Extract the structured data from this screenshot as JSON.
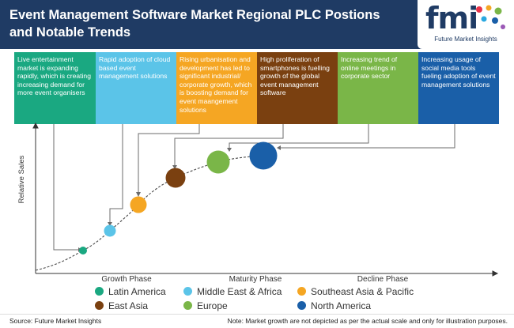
{
  "header": {
    "title": "Event Management Software Market Regional PLC Postions and Notable Trends"
  },
  "logo": {
    "wordmark": "fmi",
    "tagline": "Future Market Insights",
    "dot_colors": [
      "#e8334a",
      "#f5a623",
      "#7ab648",
      "#29a8e0",
      "#1a5fa8",
      "#9b59b6"
    ]
  },
  "trends": [
    {
      "text": "Live entertainment market is expanding rapidly, which is creating increasing demand for more event organisers",
      "color": "#1aa881"
    },
    {
      "text": "Rapid adoption of cloud based event management solutions",
      "color": "#5bc4e8"
    },
    {
      "text": "Rising urbanisation and development has led to significant industrial/ corporate growth, which is boosting demand for event maangement solutions",
      "color": "#f5a623"
    },
    {
      "text": "High proliferation of smartphones is fuelling growth of the global event management software",
      "color": "#7a4010"
    },
    {
      "text": "Increasing trend of online meetings in corporate sector",
      "color": "#7ab648"
    },
    {
      "text": "Increasing usage of social media tools fueling adoption of event management solutions",
      "color": "#1a5fa8"
    }
  ],
  "axis": {
    "ylabel": "Relative Sales"
  },
  "phases": [
    "Growth Phase",
    "Maturity Phase",
    "Decline Phase"
  ],
  "regions": [
    {
      "name": "Latin America",
      "color": "#1aa881"
    },
    {
      "name": "Middle East & Africa",
      "color": "#5bc4e8"
    },
    {
      "name": "Southeast Asia & Pacific",
      "color": "#f5a623"
    },
    {
      "name": "East Asia",
      "color": "#7a4010"
    },
    {
      "name": "Europe",
      "color": "#7ab648"
    },
    {
      "name": "North America",
      "color": "#1a5fa8"
    }
  ],
  "footer": {
    "source": "Source: Future Market Insights",
    "note": "Note: Market growth are not depicted as per the actual scale and only for illustration purposes."
  }
}
